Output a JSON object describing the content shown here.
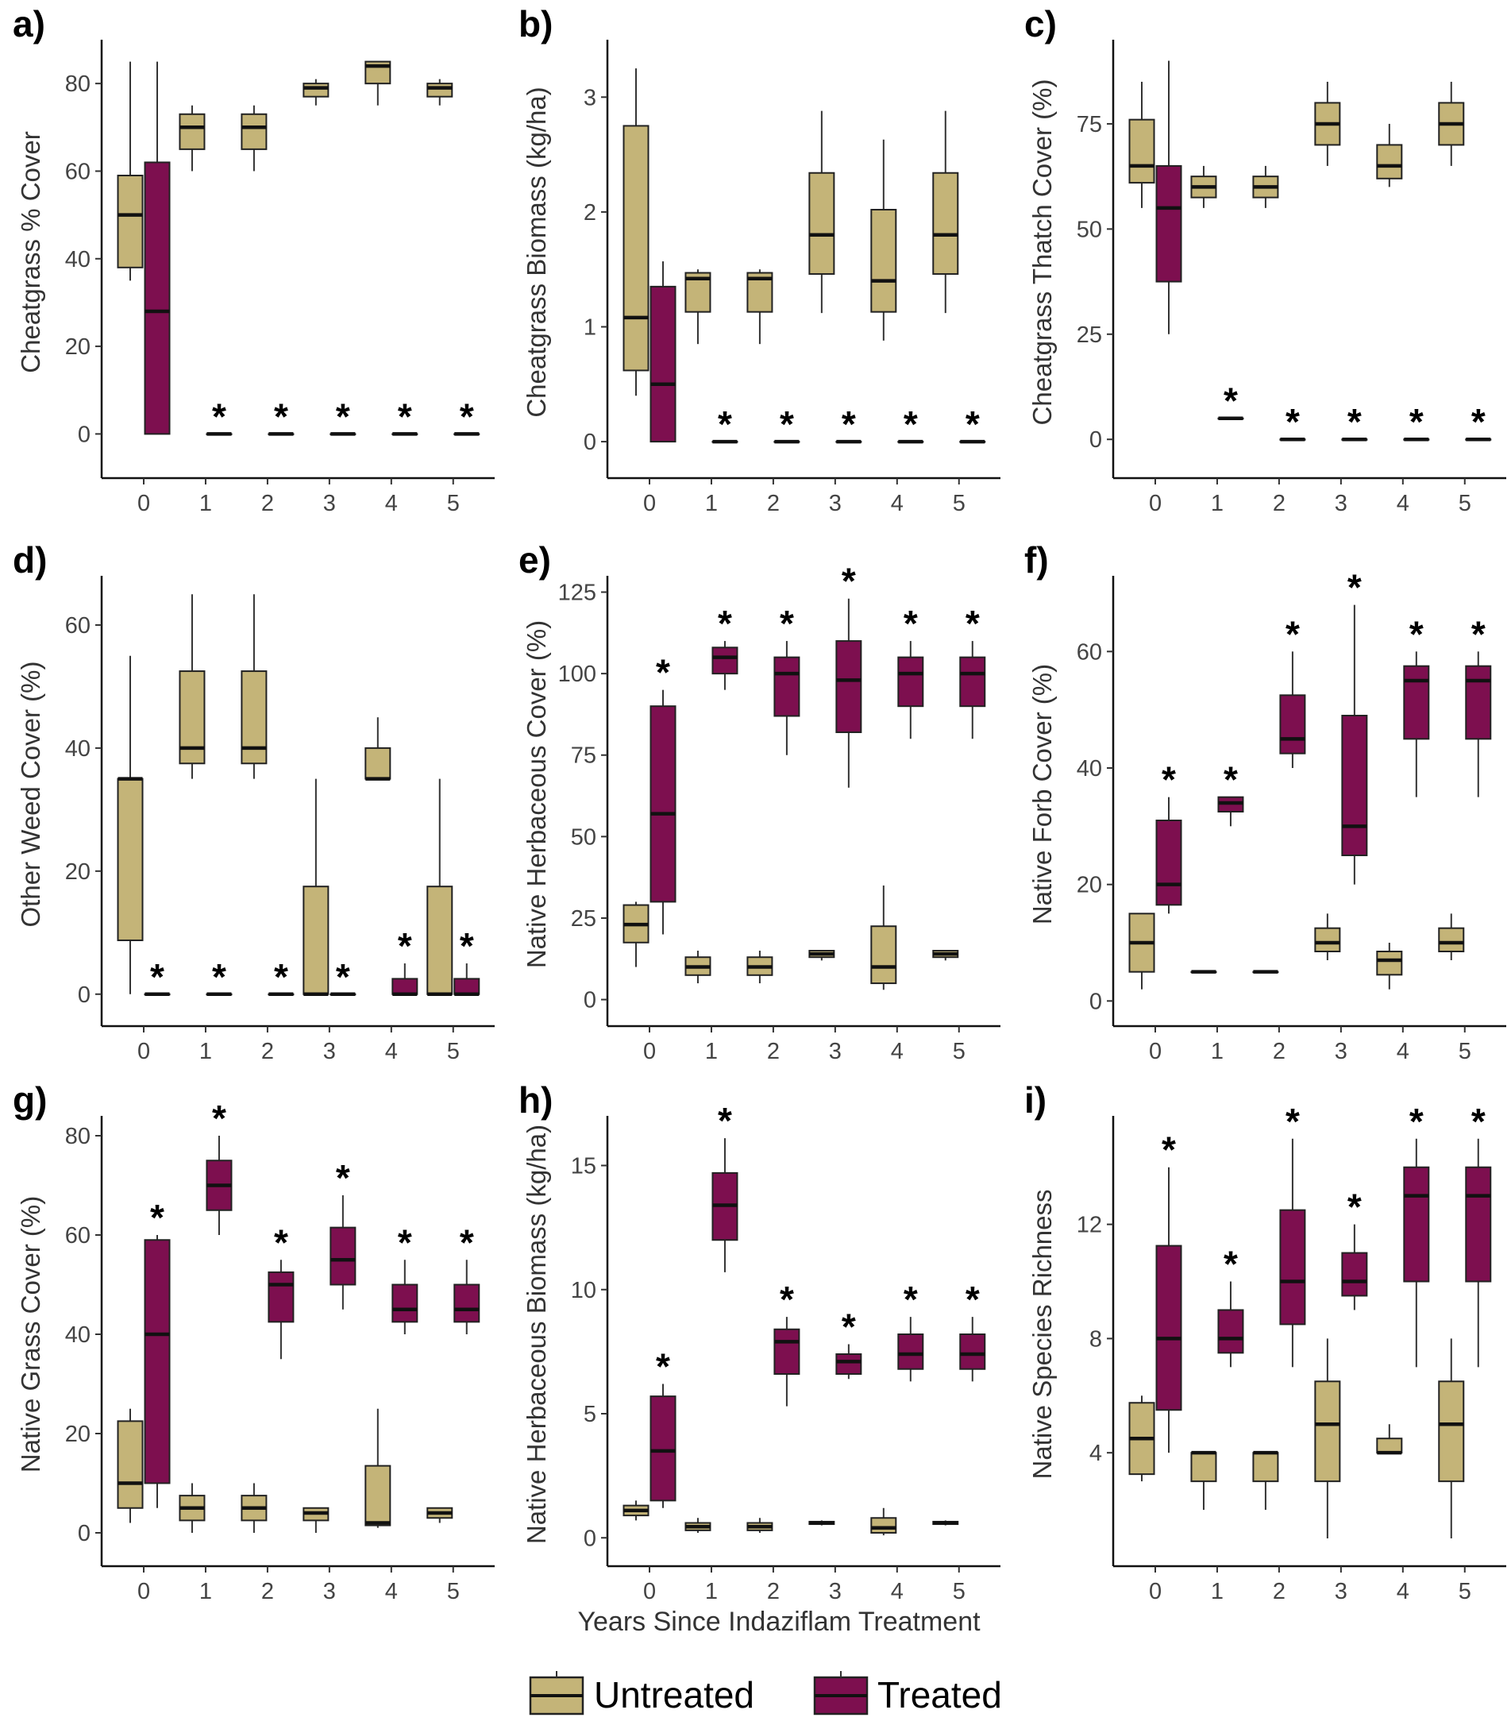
{
  "x_axis_title": "Years Since Indaziflam Treatment",
  "legend": [
    {
      "label": "Untreated",
      "color": "#c4b478"
    },
    {
      "label": "Treated",
      "color": "#7d0f4f"
    }
  ],
  "chart_data": [
    {
      "panel": "a)",
      "type": "box",
      "ylabel": "Cheatgrass % Cover",
      "categories": [
        "0",
        "1",
        "2",
        "3",
        "4",
        "5"
      ],
      "ylim": [
        -7,
        90
      ],
      "yticks": [
        0,
        20,
        40,
        60,
        80
      ],
      "untreated": [
        [
          35,
          38,
          50,
          59,
          85
        ],
        [
          60,
          65,
          70,
          73,
          75
        ],
        [
          60,
          65,
          70,
          73,
          75
        ],
        [
          75,
          77,
          79,
          80,
          81
        ],
        [
          75,
          80,
          84,
          85,
          85
        ],
        [
          75,
          77,
          79,
          80,
          81
        ]
      ],
      "treated": [
        [
          0,
          0,
          28,
          62,
          85
        ],
        [
          0,
          0,
          0,
          0,
          0
        ],
        [
          0,
          0,
          0,
          0,
          0
        ],
        [
          0,
          0,
          0,
          0,
          0
        ],
        [
          0,
          0,
          0,
          0,
          0
        ],
        [
          0,
          0,
          0,
          0,
          0
        ]
      ],
      "signif_categories": [
        "1",
        "2",
        "3",
        "4",
        "5"
      ],
      "signif_mark": "*"
    },
    {
      "panel": "b)",
      "type": "box",
      "ylabel": "Cheatgrass Biomass (kg/ha)",
      "categories": [
        "0",
        "1",
        "2",
        "3",
        "4",
        "5"
      ],
      "ylim": [
        -0.2,
        3.5
      ],
      "yticks": [
        0,
        1,
        2,
        3
      ],
      "untreated": [
        [
          0.4,
          0.62,
          1.08,
          2.75,
          3.25
        ],
        [
          0.85,
          1.13,
          1.42,
          1.47,
          1.5
        ],
        [
          0.85,
          1.13,
          1.42,
          1.47,
          1.5
        ],
        [
          1.12,
          1.46,
          1.8,
          2.34,
          2.88
        ],
        [
          0.88,
          1.13,
          1.4,
          2.02,
          2.63
        ],
        [
          1.12,
          1.46,
          1.8,
          2.34,
          2.88
        ]
      ],
      "treated": [
        [
          0,
          0,
          0.5,
          1.35,
          1.57
        ],
        [
          0,
          0,
          0,
          0,
          0
        ],
        [
          0,
          0,
          0,
          0,
          0
        ],
        [
          0,
          0,
          0,
          0,
          0
        ],
        [
          0,
          0,
          0,
          0,
          0
        ],
        [
          0,
          0,
          0,
          0,
          0
        ]
      ],
      "signif_categories": [
        "1",
        "2",
        "3",
        "4",
        "5"
      ],
      "signif_mark": "*"
    },
    {
      "panel": "c)",
      "type": "box",
      "ylabel": "Cheatgrass Thatch Cover (%)",
      "categories": [
        "0",
        "1",
        "2",
        "3",
        "4",
        "5"
      ],
      "ylim": [
        -6,
        95
      ],
      "yticks": [
        0,
        25,
        50,
        75
      ],
      "untreated": [
        [
          55,
          61,
          65,
          76,
          85
        ],
        [
          55,
          57.5,
          60,
          62.5,
          65
        ],
        [
          55,
          57.5,
          60,
          62.5,
          65
        ],
        [
          65,
          70,
          75,
          80,
          85
        ],
        [
          60,
          62,
          65,
          70,
          75
        ],
        [
          65,
          70,
          75,
          80,
          85
        ]
      ],
      "treated": [
        [
          25,
          37.5,
          55,
          65,
          90
        ],
        [
          5,
          5,
          5,
          5,
          5
        ],
        [
          0,
          0,
          0,
          0,
          0
        ],
        [
          0,
          0,
          0,
          0,
          0
        ],
        [
          0,
          0,
          0,
          0,
          0
        ],
        [
          0,
          0,
          0,
          0,
          0
        ]
      ],
      "signif_categories": [
        "1",
        "2",
        "3",
        "4",
        "5"
      ],
      "signif_mark": "*"
    },
    {
      "panel": "d)",
      "type": "box",
      "ylabel": "Other Weed Cover (%)",
      "categories": [
        "0",
        "1",
        "2",
        "3",
        "4",
        "5"
      ],
      "ylim": [
        -3,
        68
      ],
      "yticks": [
        0,
        20,
        40,
        60
      ],
      "untreated": [
        [
          0,
          8.75,
          35,
          35,
          55
        ],
        [
          35,
          37.5,
          40,
          52.5,
          65
        ],
        [
          35,
          37.5,
          40,
          52.5,
          65
        ],
        [
          0,
          0,
          0,
          17.5,
          35
        ],
        [
          35,
          35,
          35,
          40,
          45
        ],
        [
          0,
          0,
          0,
          17.5,
          35
        ]
      ],
      "treated": [
        [
          0,
          0,
          0,
          0,
          0
        ],
        [
          0,
          0,
          0,
          0,
          0
        ],
        [
          0,
          0,
          0,
          0,
          0
        ],
        [
          0,
          0,
          0,
          0,
          0
        ],
        [
          0,
          0,
          0,
          2.5,
          5
        ],
        [
          0,
          0,
          0,
          2.5,
          5
        ]
      ],
      "signif_categories": [
        "0",
        "1",
        "2",
        "3",
        "4",
        "5"
      ],
      "signif_mark": "*"
    },
    {
      "panel": "e)",
      "type": "box",
      "ylabel": "Native Herbaceous Cover (%)",
      "categories": [
        "0",
        "1",
        "2",
        "3",
        "4",
        "5"
      ],
      "ylim": [
        -4,
        130
      ],
      "yticks": [
        0,
        25,
        50,
        75,
        100,
        125
      ],
      "untreated": [
        [
          10,
          17.5,
          23,
          29,
          30
        ],
        [
          5,
          7.5,
          10,
          13,
          15
        ],
        [
          5,
          7.5,
          10,
          13,
          15
        ],
        [
          12,
          13,
          14,
          15,
          15
        ],
        [
          3,
          5,
          10,
          22.5,
          35
        ],
        [
          12,
          13,
          14,
          15,
          15
        ]
      ],
      "treated": [
        [
          20,
          30,
          57,
          90,
          95
        ],
        [
          95,
          100,
          105,
          108,
          110
        ],
        [
          75,
          87,
          100,
          105,
          110
        ],
        [
          65,
          82,
          98,
          110,
          123
        ],
        [
          80,
          90,
          100,
          105,
          110
        ],
        [
          80,
          90,
          100,
          105,
          110
        ]
      ],
      "signif_categories": [
        "0",
        "1",
        "2",
        "3",
        "4",
        "5"
      ],
      "signif_mark": "*"
    },
    {
      "panel": "f)",
      "type": "box",
      "ylabel": "Native Forb Cover (%)",
      "categories": [
        "0",
        "1",
        "2",
        "3",
        "4",
        "5"
      ],
      "ylim": [
        -2,
        73
      ],
      "yticks": [
        0,
        20,
        40,
        60
      ],
      "untreated": [
        [
          2,
          5,
          10,
          15,
          15
        ],
        [
          5,
          5,
          5,
          5,
          5
        ],
        [
          5,
          5,
          5,
          5,
          5
        ],
        [
          7,
          8.5,
          10,
          12.5,
          15
        ],
        [
          2,
          4.5,
          7,
          8.5,
          10
        ],
        [
          7,
          8.5,
          10,
          12.5,
          15
        ]
      ],
      "treated": [
        [
          15,
          16.5,
          20,
          31,
          35
        ],
        [
          30,
          32.5,
          34,
          35,
          35
        ],
        [
          40,
          42.5,
          45,
          52.5,
          60
        ],
        [
          20,
          25,
          30,
          49,
          68
        ],
        [
          35,
          45,
          55,
          57.5,
          60
        ],
        [
          35,
          45,
          55,
          57.5,
          60
        ]
      ],
      "signif_categories": [
        "0",
        "1",
        "2",
        "3",
        "4",
        "5"
      ],
      "signif_mark": "*"
    },
    {
      "panel": "g)",
      "type": "box",
      "ylabel": "Native Grass Cover (%)",
      "categories": [
        "0",
        "1",
        "2",
        "3",
        "4",
        "5"
      ],
      "ylim": [
        -4,
        84
      ],
      "yticks": [
        0,
        20,
        40,
        60,
        80
      ],
      "untreated": [
        [
          2,
          5,
          10,
          22.5,
          25
        ],
        [
          0,
          2.5,
          5,
          7.5,
          10
        ],
        [
          0,
          2.5,
          5,
          7.5,
          10
        ],
        [
          0,
          2.5,
          4,
          5,
          5
        ],
        [
          1,
          1.5,
          2,
          13.5,
          25
        ],
        [
          2,
          3,
          4,
          5,
          5
        ]
      ],
      "treated": [
        [
          5,
          10,
          40,
          59,
          60
        ],
        [
          60,
          65,
          70,
          75,
          80
        ],
        [
          35,
          42.5,
          50,
          52.5,
          55
        ],
        [
          45,
          50,
          55,
          61.5,
          68
        ],
        [
          40,
          42.5,
          45,
          50,
          55
        ],
        [
          40,
          42.5,
          45,
          50,
          55
        ]
      ],
      "signif_categories": [
        "0",
        "1",
        "2",
        "3",
        "4",
        "5"
      ],
      "signif_mark": "*"
    },
    {
      "panel": "h)",
      "type": "box",
      "ylabel": "Native Herbaceous Biomass (kg/ha)",
      "categories": [
        "0",
        "1",
        "2",
        "3",
        "4",
        "5"
      ],
      "ylim": [
        -0.6,
        17
      ],
      "yticks": [
        0,
        5,
        10,
        15
      ],
      "untreated": [
        [
          0.7,
          0.9,
          1.1,
          1.3,
          1.5
        ],
        [
          0.2,
          0.3,
          0.45,
          0.6,
          0.8
        ],
        [
          0.2,
          0.3,
          0.45,
          0.6,
          0.8
        ],
        [
          0.5,
          0.55,
          0.6,
          0.65,
          0.7
        ],
        [
          0.1,
          0.2,
          0.4,
          0.8,
          1.2
        ],
        [
          0.5,
          0.55,
          0.6,
          0.65,
          0.7
        ]
      ],
      "treated": [
        [
          1.2,
          1.5,
          3.5,
          5.7,
          6.2
        ],
        [
          10.7,
          12,
          13.4,
          14.7,
          16.1
        ],
        [
          5.3,
          6.6,
          7.9,
          8.4,
          8.9
        ],
        [
          6.4,
          6.6,
          7.1,
          7.4,
          7.8
        ],
        [
          6.3,
          6.8,
          7.4,
          8.2,
          8.9
        ],
        [
          6.3,
          6.8,
          7.4,
          8.2,
          8.9
        ]
      ],
      "signif_categories": [
        "0",
        "1",
        "2",
        "3",
        "4",
        "5"
      ],
      "signif_mark": "*"
    },
    {
      "panel": "i)",
      "type": "box",
      "ylabel": "Native Species Richness",
      "categories": [
        "0",
        "1",
        "2",
        "3",
        "4",
        "5"
      ],
      "ylim": [
        0.5,
        15.8
      ],
      "yticks": [
        4,
        8,
        12
      ],
      "untreated": [
        [
          3,
          3.25,
          4.5,
          5.75,
          6
        ],
        [
          2,
          3,
          4,
          4,
          4
        ],
        [
          2,
          3,
          4,
          4,
          4
        ],
        [
          1,
          3,
          5,
          6.5,
          8
        ],
        [
          4,
          4,
          4,
          4.5,
          5
        ],
        [
          1,
          3,
          5,
          6.5,
          8
        ]
      ],
      "treated": [
        [
          4,
          5.5,
          8,
          11.25,
          14
        ],
        [
          7,
          7.5,
          8,
          9,
          10
        ],
        [
          7,
          8.5,
          10,
          12.5,
          15
        ],
        [
          9,
          9.5,
          10,
          11,
          12
        ],
        [
          7,
          10,
          13,
          14,
          15
        ],
        [
          7,
          10,
          13,
          14,
          15
        ]
      ],
      "signif_categories": [
        "0",
        "1",
        "2",
        "3",
        "4",
        "5"
      ],
      "signif_mark": "*"
    }
  ]
}
